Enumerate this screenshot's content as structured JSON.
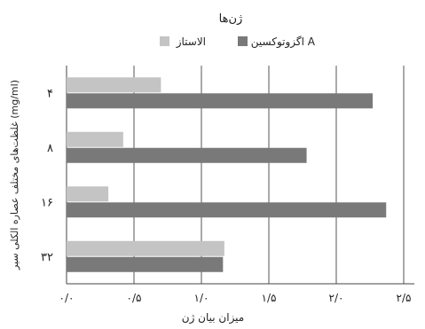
{
  "chart_data": {
    "type": "bar",
    "orientation": "horizontal",
    "legend_title": "ژن‌ها",
    "legend_position": "top",
    "categories": [
      "۴",
      "۸",
      "۱۶",
      "۳۲"
    ],
    "series": [
      {
        "name": "الاستاز",
        "color": "#c4c4c4",
        "values": [
          0.7,
          0.42,
          0.31,
          1.17
        ]
      },
      {
        "name": "اگزوتوکسین A",
        "color": "#797979",
        "values": [
          2.27,
          1.78,
          2.37,
          1.16
        ]
      }
    ],
    "xlabel": "میزان بیان ژن",
    "ylabel": "غلظت‌های مختلف عصاره الکلی سیر (mg/ml)",
    "xlim": [
      0,
      2.5
    ],
    "xticks": [
      0,
      0.5,
      1.0,
      1.5,
      2.0,
      2.5
    ],
    "xtick_labels": [
      "۰/۰",
      "۰/۵",
      "۱/۰",
      "۱/۵",
      "۲/۰",
      "۲/۵"
    ],
    "grid": "vertical"
  }
}
